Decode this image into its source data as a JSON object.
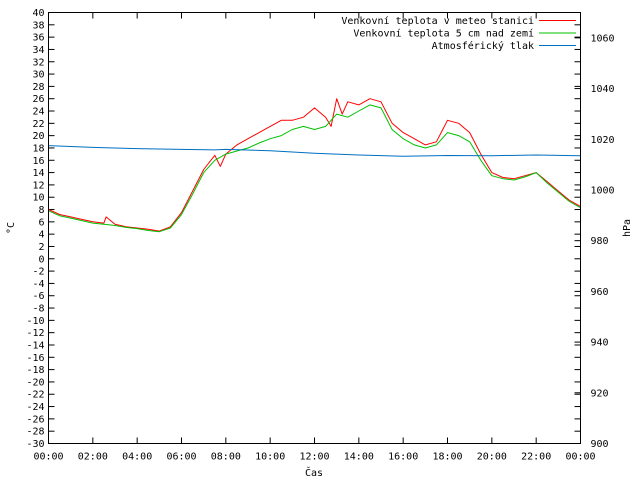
{
  "chart_data": {
    "type": "line",
    "xlabel": "Čas",
    "ylabel": "°C",
    "y2label": "hPa",
    "x_ticks": [
      "00:00",
      "02:00",
      "04:00",
      "06:00",
      "08:00",
      "10:00",
      "12:00",
      "14:00",
      "16:00",
      "18:00",
      "20:00",
      "22:00",
      "00:00"
    ],
    "xlim": [
      0,
      24
    ],
    "ylim": [
      -30,
      40
    ],
    "y_ticks": [
      -30,
      -28,
      -26,
      -24,
      -22,
      -20,
      -18,
      -16,
      -14,
      -12,
      -10,
      -8,
      -6,
      -4,
      -2,
      0,
      2,
      4,
      6,
      8,
      10,
      12,
      14,
      16,
      18,
      20,
      22,
      24,
      26,
      28,
      30,
      32,
      34,
      36,
      38,
      40
    ],
    "y2lim": [
      900,
      1070
    ],
    "y2_ticks": [
      900,
      920,
      940,
      960,
      980,
      1000,
      1020,
      1040,
      1060
    ],
    "grid": false,
    "legend_position": "top-right",
    "series": [
      {
        "name": "Venkovní teplota v meteo stanici",
        "color": "#ff0000",
        "axis": "left",
        "x": [
          0,
          0.5,
          1,
          1.5,
          2,
          2.5,
          2.6,
          3,
          3.5,
          4,
          4.5,
          5,
          5.5,
          6,
          6.5,
          7,
          7.5,
          7.75,
          8,
          8.5,
          9,
          9.5,
          10,
          10.5,
          11,
          11.5,
          12,
          12.5,
          12.75,
          13,
          13.25,
          13.5,
          14,
          14.5,
          15,
          15.5,
          16,
          16.5,
          17,
          17.5,
          18,
          18.5,
          19,
          19.5,
          20,
          20.5,
          21,
          21.5,
          22,
          22.5,
          23,
          23.5,
          24
        ],
        "values": [
          8.0,
          7.2,
          6.8,
          6.4,
          6.0,
          5.8,
          6.8,
          5.6,
          5.2,
          5.0,
          4.8,
          4.5,
          5.2,
          7.5,
          11.0,
          14.5,
          16.8,
          15.0,
          17.0,
          18.5,
          19.5,
          20.5,
          21.5,
          22.5,
          22.5,
          23.0,
          24.5,
          23.0,
          21.5,
          26.0,
          23.5,
          25.5,
          25.0,
          26.0,
          25.5,
          22.0,
          20.5,
          19.5,
          18.5,
          19.0,
          22.5,
          22.0,
          20.5,
          17.0,
          14.0,
          13.2,
          13.0,
          13.5,
          14.0,
          12.5,
          11.0,
          9.5,
          8.5
        ]
      },
      {
        "name": "Venkovní teplota 5 cm nad zemí",
        "color": "#00c000",
        "axis": "left",
        "x": [
          0,
          0.5,
          1,
          1.5,
          2,
          2.5,
          3,
          3.5,
          4,
          4.5,
          5,
          5.5,
          6,
          6.5,
          7,
          7.5,
          8,
          8.5,
          9,
          9.5,
          10,
          10.5,
          11,
          11.5,
          12,
          12.5,
          13,
          13.5,
          14,
          14.5,
          15,
          15.5,
          16,
          16.5,
          17,
          17.5,
          18,
          18.5,
          19,
          19.5,
          20,
          20.5,
          21,
          21.5,
          22,
          22.5,
          23,
          23.5,
          24
        ],
        "values": [
          7.8,
          7.0,
          6.6,
          6.2,
          5.8,
          5.6,
          5.4,
          5.1,
          4.9,
          4.6,
          4.4,
          5.0,
          7.2,
          10.5,
          14.0,
          16.0,
          17.0,
          17.5,
          18.0,
          18.8,
          19.5,
          20.0,
          21.0,
          21.5,
          21.0,
          21.5,
          23.5,
          23.0,
          24.0,
          25.0,
          24.5,
          21.0,
          19.5,
          18.5,
          18.0,
          18.5,
          20.5,
          20.0,
          19.0,
          16.0,
          13.5,
          13.0,
          12.8,
          13.3,
          14.0,
          12.3,
          10.8,
          9.3,
          8.3
        ]
      },
      {
        "name": "Atmosférický tlak",
        "color": "#0070c0",
        "axis": "right",
        "x": [
          0,
          2,
          4,
          6,
          7.5,
          8,
          10,
          12,
          14,
          16,
          18,
          20,
          22,
          24
        ],
        "values": [
          1017.5,
          1016.8,
          1016.3,
          1016.0,
          1015.8,
          1016.0,
          1015.5,
          1014.5,
          1013.8,
          1013.3,
          1013.6,
          1013.5,
          1013.8,
          1013.5
        ]
      }
    ]
  }
}
